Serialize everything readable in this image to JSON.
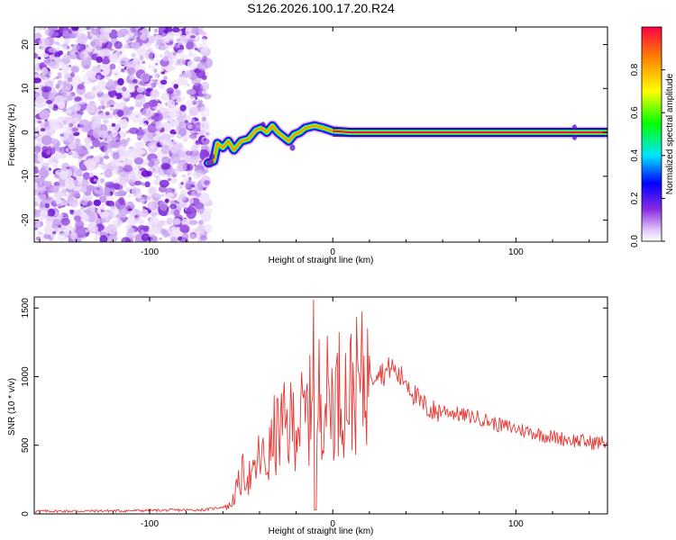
{
  "title": "S126.2026.100.17.20.R24",
  "chart_data": [
    {
      "type": "heatmap",
      "xlabel": "Height of straight line (km)",
      "ylabel": "Frequency (Hz)",
      "xlim": [
        -163,
        150
      ],
      "ylim": [
        -25,
        24
      ],
      "xticks": [
        -100,
        0,
        100
      ],
      "yticks": [
        -20,
        -10,
        0,
        10,
        20
      ],
      "noise_region_x": [
        -163,
        -68
      ],
      "ridge": [
        {
          "x": -68,
          "y": -7
        },
        {
          "x": -65,
          "y": -6.5
        },
        {
          "x": -63,
          "y": -2.5
        },
        {
          "x": -60,
          "y": -3.5
        },
        {
          "x": -57,
          "y": -2
        },
        {
          "x": -54,
          "y": -4
        },
        {
          "x": -50,
          "y": -2
        },
        {
          "x": -46,
          "y": -1.5
        },
        {
          "x": -42,
          "y": 0.5
        },
        {
          "x": -39,
          "y": 1
        },
        {
          "x": -36,
          "y": 0
        },
        {
          "x": -33,
          "y": 1.5
        },
        {
          "x": -30,
          "y": 0
        },
        {
          "x": -27,
          "y": -1
        },
        {
          "x": -24,
          "y": -2
        },
        {
          "x": -21,
          "y": -0.5
        },
        {
          "x": -18,
          "y": 0
        },
        {
          "x": -15,
          "y": 1
        },
        {
          "x": -10,
          "y": 1.5
        },
        {
          "x": -5,
          "y": 1
        },
        {
          "x": 0,
          "y": 0.3
        },
        {
          "x": 10,
          "y": 0
        },
        {
          "x": 150,
          "y": 0
        }
      ],
      "colorbar": {
        "label": "Normalized spectral amplitude",
        "range": [
          0.0,
          1.0
        ],
        "ticks": [
          0.0,
          0.2,
          0.4,
          0.6,
          0.8
        ],
        "tick_labels": [
          "0.0",
          "0.2",
          "0.4",
          "0.6",
          "0.8"
        ]
      }
    },
    {
      "type": "line",
      "xlabel": "Height of straight line (km)",
      "ylabel": "SNR (10 * v/v)",
      "xlim": [
        -163,
        150
      ],
      "ylim": [
        0,
        1580
      ],
      "xticks": [
        -100,
        0,
        100
      ],
      "yticks": [
        0,
        500,
        1000,
        1500
      ],
      "color": "#e53935",
      "series": [
        {
          "name": "SNR",
          "x": [
            -163,
            -120,
            -70,
            -56,
            -52,
            -48,
            -44,
            -40,
            -36,
            -32,
            -28,
            -24,
            -20,
            -16,
            -12,
            -10,
            -9,
            -8,
            -4,
            0,
            4,
            8,
            12,
            16,
            20,
            22,
            24,
            28,
            32,
            36,
            40,
            44,
            48,
            52,
            56,
            60,
            70,
            80,
            90,
            100,
            110,
            120,
            130,
            140,
            150
          ],
          "y": [
            20,
            22,
            30,
            60,
            190,
            320,
            240,
            420,
            360,
            560,
            620,
            620,
            700,
            680,
            760,
            1560,
            40,
            880,
            860,
            840,
            900,
            880,
            920,
            960,
            1080,
            1000,
            1060,
            1020,
            1080,
            1000,
            980,
            880,
            800,
            770,
            740,
            760,
            720,
            700,
            650,
            620,
            590,
            560,
            540,
            520,
            520
          ]
        }
      ]
    }
  ]
}
